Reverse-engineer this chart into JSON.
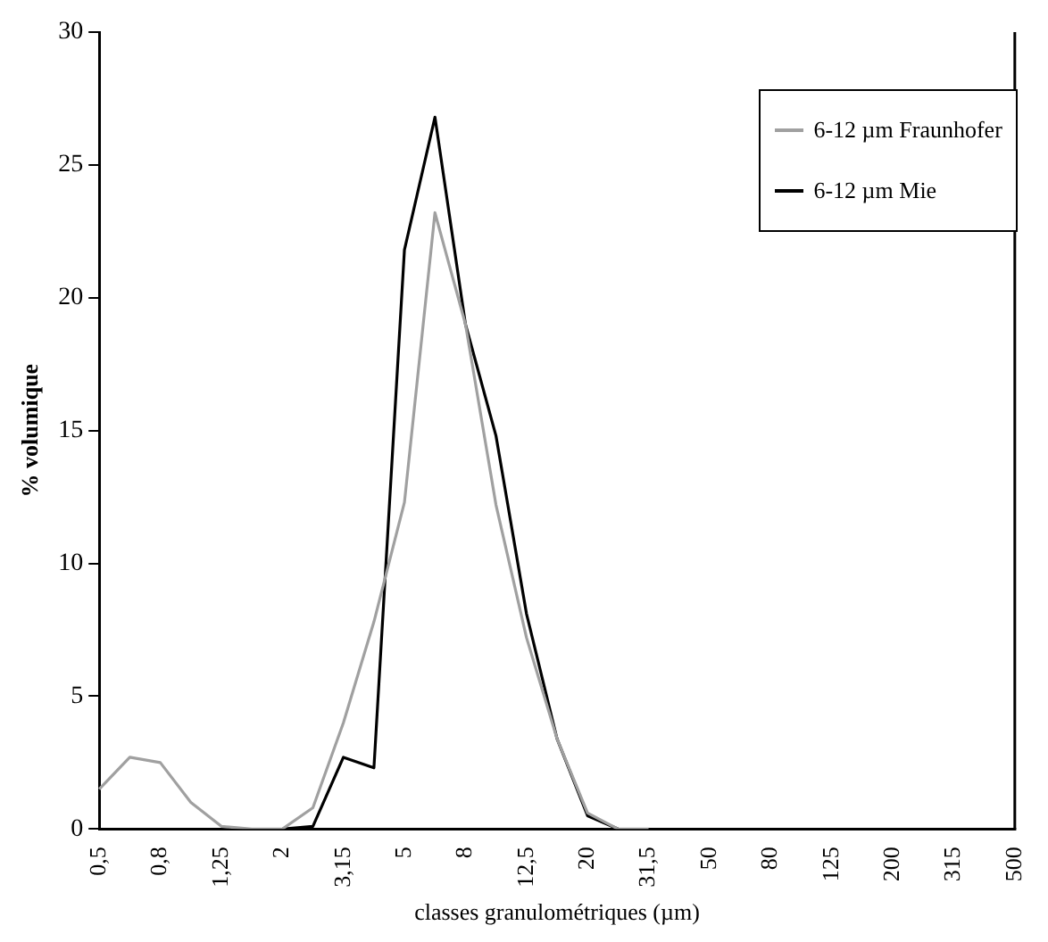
{
  "chart_data": {
    "type": "line",
    "xlabel": "classes granulométriques (µm)",
    "ylabel": "% volumique",
    "categories": [
      "0,5",
      null,
      "0,8",
      null,
      "1,25",
      null,
      "2",
      null,
      "3,15",
      null,
      "5",
      null,
      "8",
      null,
      "12,5",
      null,
      "20",
      null,
      "31,5",
      null,
      "50",
      null,
      "80",
      null,
      "125",
      null,
      "200",
      null,
      "315",
      null,
      "500"
    ],
    "series": [
      {
        "name": "6-12 µm Fraunhofer",
        "color": "#a0a0a0",
        "values": [
          1.5,
          2.7,
          2.5,
          1.0,
          0.1,
          0,
          0,
          0.8,
          4.0,
          7.8,
          12.3,
          23.2,
          19.0,
          12.2,
          7.2,
          3.4,
          0.6,
          0,
          0,
          null,
          null,
          null,
          null,
          null,
          null,
          null,
          null,
          null,
          null,
          null,
          null
        ]
      },
      {
        "name": "6-12 µm Mie",
        "color": "#000000",
        "values": [
          null,
          null,
          null,
          null,
          null,
          null,
          0,
          0.1,
          2.7,
          2.3,
          21.8,
          26.8,
          19.0,
          14.8,
          8.1,
          3.4,
          0.5,
          0,
          null,
          null,
          null,
          null,
          null,
          null,
          null,
          null,
          null,
          null,
          null,
          null,
          null
        ]
      }
    ],
    "ylim": [
      0,
      30
    ],
    "yticks": [
      0,
      5,
      10,
      15,
      20,
      25,
      30
    ],
    "grid": false,
    "legend": "top right",
    "marker": "none",
    "line_style": "solid"
  }
}
